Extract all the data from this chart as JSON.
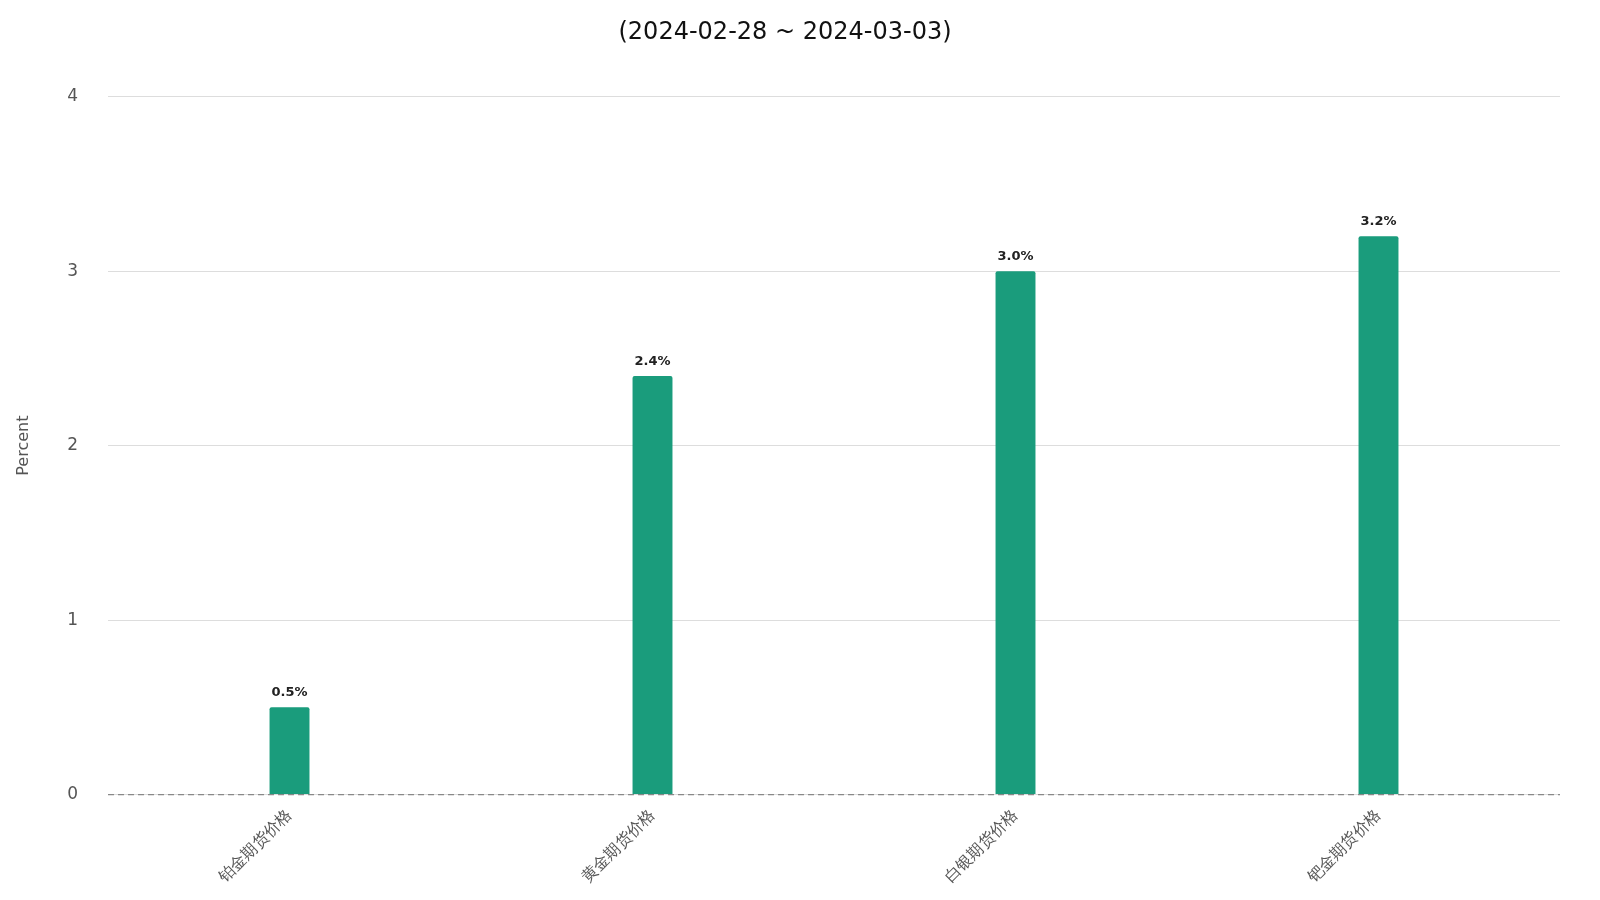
{
  "chart_data": {
    "type": "bar",
    "title": "(2024-02-28 ~ 2024-03-03)",
    "ylabel": "Percent",
    "categories": [
      "铂金期货价格",
      "黄金期货价格",
      "白银期货价格",
      "钯金期货价格"
    ],
    "values": [
      0.5,
      2.4,
      3.0,
      3.2
    ],
    "color": "#1a9c7c",
    "value_labels": [
      "0.5%",
      "2.4%",
      "3.0%",
      "3.2%"
    ],
    "ylim": [
      0,
      4
    ],
    "yticks": [
      0,
      1,
      2,
      3,
      4
    ],
    "grid": "y",
    "legend": false,
    "ref_lines": [
      {
        "axis": "y",
        "value": 0,
        "color": "#888888",
        "line_style": "dashed"
      }
    ]
  }
}
